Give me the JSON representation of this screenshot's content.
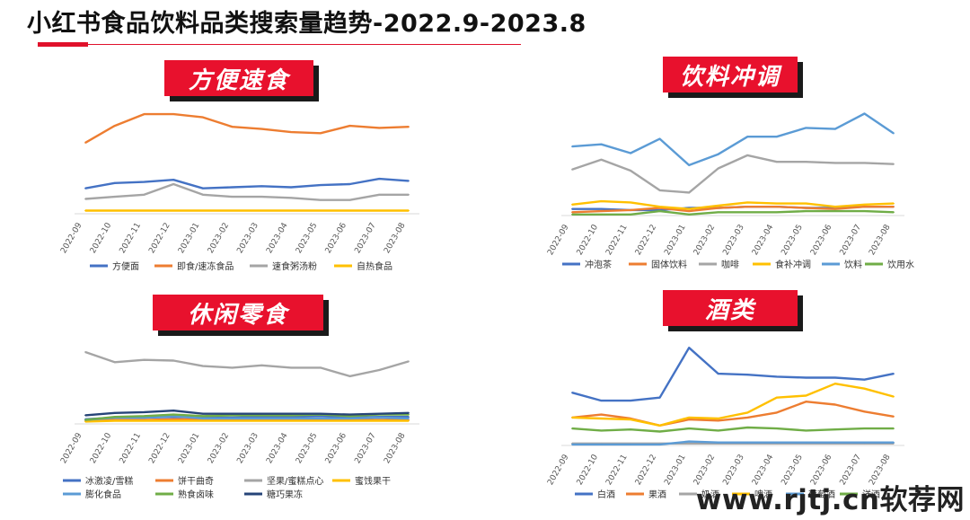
{
  "page": {
    "title": "小红书食品饮料品类搜索量趋势-2022.9-2023.8",
    "watermark": "www.rjtj.cn软荐网",
    "accent_color": "#e8112d"
  },
  "chart_data": [
    {
      "type": "line",
      "title": "方便速食",
      "categories": [
        "2022-09",
        "2022-10",
        "2022-11",
        "2022-12",
        "2023-01",
        "2023-02",
        "2023-03",
        "2023-04",
        "2023-05",
        "2023-06",
        "2023-07",
        "2023-08"
      ],
      "ylim": [
        0,
        100
      ],
      "grid": false,
      "legend_position": "bottom",
      "series": [
        {
          "name": "方便面",
          "color": "#4472c4",
          "values": [
            24,
            29,
            30,
            32,
            24,
            25,
            26,
            25,
            27,
            28,
            33,
            31
          ]
        },
        {
          "name": "即食/速冻食品",
          "color": "#ed7d31",
          "values": [
            67,
            83,
            94,
            94,
            91,
            82,
            80,
            77,
            76,
            83,
            81,
            82
          ]
        },
        {
          "name": "速食粥汤粉",
          "color": "#a5a5a5",
          "values": [
            14,
            16,
            18,
            28,
            18,
            16,
            16,
            15,
            13,
            13,
            18,
            18
          ]
        },
        {
          "name": "自热食品",
          "color": "#ffc000",
          "values": [
            3,
            3,
            3,
            3,
            3,
            3,
            3,
            3,
            3,
            3,
            3,
            3
          ]
        }
      ]
    },
    {
      "type": "line",
      "title": "饮料冲调",
      "categories": [
        "2022-09",
        "2022-10",
        "2022-11",
        "2022-12",
        "2023-01",
        "2023-02",
        "2023-03",
        "2023-04",
        "2023-05",
        "2023-06",
        "2023-07",
        "2023-08"
      ],
      "ylim": [
        0,
        100
      ],
      "grid": false,
      "legend_position": "bottom",
      "series": [
        {
          "name": "冲泡茶",
          "color": "#4472c4",
          "values": [
            6,
            6,
            5,
            5,
            7,
            7,
            8,
            8,
            7,
            7,
            8,
            8
          ]
        },
        {
          "name": "固体饮料",
          "color": "#ed7d31",
          "values": [
            3,
            4,
            5,
            7,
            4,
            7,
            8,
            8,
            7,
            6,
            8,
            8
          ]
        },
        {
          "name": "咖啡",
          "color": "#a5a5a5",
          "values": [
            42,
            51,
            41,
            23,
            21,
            43,
            55,
            49,
            49,
            48,
            48,
            47
          ]
        },
        {
          "name": "食补冲调",
          "color": "#ffc000",
          "values": [
            10,
            13,
            12,
            8,
            6,
            9,
            12,
            11,
            11,
            8,
            10,
            11
          ]
        },
        {
          "name": "饮料",
          "color": "#5b9bd5",
          "values": [
            63,
            65,
            57,
            70,
            46,
            56,
            72,
            72,
            80,
            79,
            93,
            75
          ]
        },
        {
          "name": "饮用水",
          "color": "#70ad47",
          "values": [
            1,
            1,
            1,
            4,
            1,
            3,
            3,
            3,
            4,
            4,
            4,
            3
          ]
        }
      ]
    },
    {
      "type": "line",
      "title": "休闲零食",
      "categories": [
        "2022-09",
        "2022-10",
        "2022-11",
        "2022-12",
        "2023-01",
        "2023-02",
        "2023-03",
        "2023-04",
        "2023-05",
        "2023-06",
        "2023-07",
        "2023-08"
      ],
      "ylim": [
        0,
        100
      ],
      "grid": false,
      "legend_position": "bottom",
      "series": [
        {
          "name": "冰激凌/雪糕",
          "color": "#4472c4",
          "values": [
            6,
            8,
            8,
            9,
            8,
            8,
            9,
            9,
            10,
            8,
            9,
            9
          ]
        },
        {
          "name": "饼干曲奇",
          "color": "#ed7d31",
          "values": [
            4,
            5,
            5,
            6,
            6,
            5,
            5,
            5,
            5,
            5,
            5,
            5
          ]
        },
        {
          "name": "坚果/蜜糕点心",
          "color": "#a5a5a5",
          "values": [
            92,
            79,
            82,
            81,
            74,
            72,
            75,
            72,
            72,
            61,
            69,
            80
          ]
        },
        {
          "name": "蜜饯果干",
          "color": "#ffc000",
          "values": [
            3,
            4,
            4,
            4,
            4,
            4,
            4,
            4,
            4,
            4,
            4,
            4
          ]
        },
        {
          "name": "膨化食品",
          "color": "#5b9bd5",
          "values": [
            5,
            8,
            8,
            10,
            7,
            7,
            7,
            7,
            7,
            7,
            8,
            7
          ]
        },
        {
          "name": "熟食卤味",
          "color": "#70ad47",
          "values": [
            5,
            9,
            10,
            12,
            10,
            11,
            11,
            11,
            12,
            10,
            12,
            12
          ]
        },
        {
          "name": "糖巧果冻",
          "color": "#264478",
          "values": [
            11,
            14,
            15,
            17,
            13,
            13,
            13,
            13,
            13,
            12,
            13,
            14
          ]
        }
      ]
    },
    {
      "type": "line",
      "title": "酒类",
      "categories": [
        "2022-09",
        "2022-10",
        "2022-11",
        "2022-12",
        "2023-01",
        "2023-02",
        "2023-03",
        "2023-04",
        "2023-05",
        "2023-06",
        "2023-07",
        "2023-08"
      ],
      "ylim": [
        0,
        100
      ],
      "grid": false,
      "legend_position": "bottom",
      "series": [
        {
          "name": "白酒",
          "color": "#4472c4",
          "values": [
            53,
            45,
            45,
            48,
            98,
            72,
            71,
            69,
            68,
            68,
            66,
            72
          ]
        },
        {
          "name": "果酒",
          "color": "#ed7d31",
          "values": [
            28,
            31,
            27,
            20,
            26,
            25,
            28,
            33,
            44,
            41,
            34,
            29
          ]
        },
        {
          "name": "奶酒",
          "color": "#a5a5a5",
          "values": [
            2,
            2,
            2,
            2,
            2,
            2,
            2,
            2,
            2,
            2,
            2,
            2
          ]
        },
        {
          "name": "啤酒",
          "color": "#ffc000",
          "values": [
            28,
            27,
            26,
            20,
            28,
            27,
            33,
            48,
            50,
            62,
            57,
            49
          ]
        },
        {
          "name": "葡萄酒",
          "color": "#5b9bd5",
          "values": [
            1,
            1,
            1,
            1,
            4,
            3,
            3,
            3,
            3,
            3,
            3,
            3
          ]
        },
        {
          "name": "洋酒",
          "color": "#70ad47",
          "values": [
            17,
            15,
            16,
            14,
            17,
            15,
            18,
            17,
            15,
            16,
            17,
            17
          ]
        }
      ]
    }
  ]
}
